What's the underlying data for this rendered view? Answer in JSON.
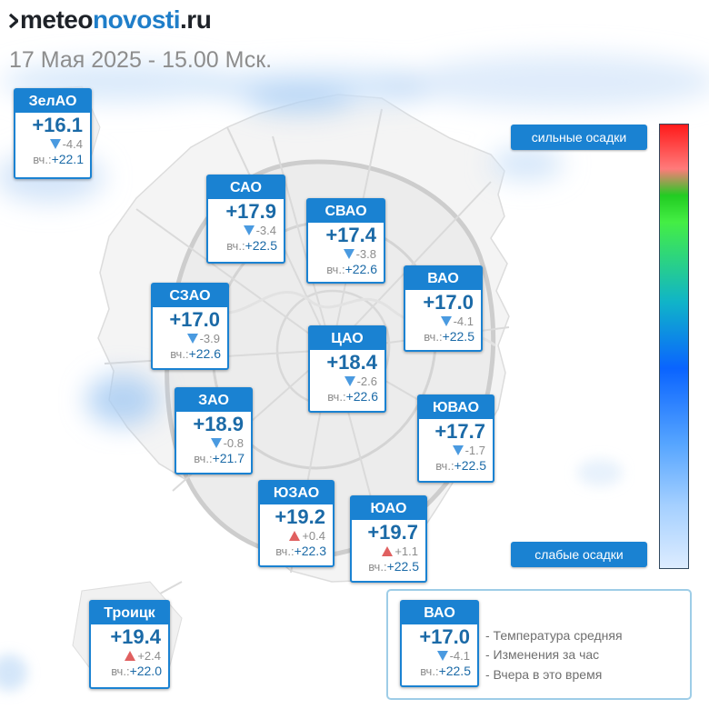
{
  "header": {
    "logo": {
      "part1": "meteo",
      "part2": "novosti",
      "part3": ".ru"
    },
    "subtitle": "17 Мая 2025 - 15.00 Мск."
  },
  "colors": {
    "card_header": "#1a82d2",
    "temp_text": "#1b6aa7",
    "down_arrow": "#4a9ae0",
    "up_arrow": "#e06060"
  },
  "districts": [
    {
      "id": "zelao",
      "name": "ЗелАО",
      "temp": "+16.1",
      "change": "-4.4",
      "trend": "down",
      "yest_label": "вч.:",
      "yest": "+22.1"
    },
    {
      "id": "sao",
      "name": "САО",
      "temp": "+17.9",
      "change": "-3.4",
      "trend": "down",
      "yest_label": "вч.:",
      "yest": "+22.5"
    },
    {
      "id": "svao",
      "name": "СВАО",
      "temp": "+17.4",
      "change": "-3.8",
      "trend": "down",
      "yest_label": "вч.:",
      "yest": "+22.6"
    },
    {
      "id": "vao",
      "name": "ВАО",
      "temp": "+17.0",
      "change": "-4.1",
      "trend": "down",
      "yest_label": "вч.:",
      "yest": "+22.5"
    },
    {
      "id": "szao",
      "name": "СЗАО",
      "temp": "+17.0",
      "change": "-3.9",
      "trend": "down",
      "yest_label": "вч.:",
      "yest": "+22.6"
    },
    {
      "id": "cao",
      "name": "ЦАО",
      "temp": "+18.4",
      "change": "-2.6",
      "trend": "down",
      "yest_label": "вч.:",
      "yest": "+22.6"
    },
    {
      "id": "zao",
      "name": "ЗАО",
      "temp": "+18.9",
      "change": "-0.8",
      "trend": "down",
      "yest_label": "вч.:",
      "yest": "+21.7"
    },
    {
      "id": "yuvao",
      "name": "ЮВАО",
      "temp": "+17.7",
      "change": "-1.7",
      "trend": "down",
      "yest_label": "вч.:",
      "yest": "+22.5"
    },
    {
      "id": "yuzao",
      "name": "ЮЗАО",
      "temp": "+19.2",
      "change": "+0.4",
      "trend": "up",
      "yest_label": "вч.:",
      "yest": "+22.3"
    },
    {
      "id": "yuao",
      "name": "ЮАО",
      "temp": "+19.7",
      "change": "+1.1",
      "trend": "up",
      "yest_label": "вч.:",
      "yest": "+22.5"
    },
    {
      "id": "troitsk",
      "name": "Троицк",
      "temp": "+19.4",
      "change": "+2.4",
      "trend": "up",
      "yest_label": "вч.:",
      "yest": "+22.0"
    }
  ],
  "precip_scale": {
    "high_label": "сильные осадки",
    "low_label": "слабые осадки"
  },
  "legend": {
    "sample": {
      "name": "ВАО",
      "temp": "+17.0",
      "change": "-4.1",
      "trend": "down",
      "yest_label": "вч.:",
      "yest": "+22.5"
    },
    "line1": "- Температура средняя",
    "line2": "- Изменения за час",
    "line3": "- Вчера в это время"
  }
}
